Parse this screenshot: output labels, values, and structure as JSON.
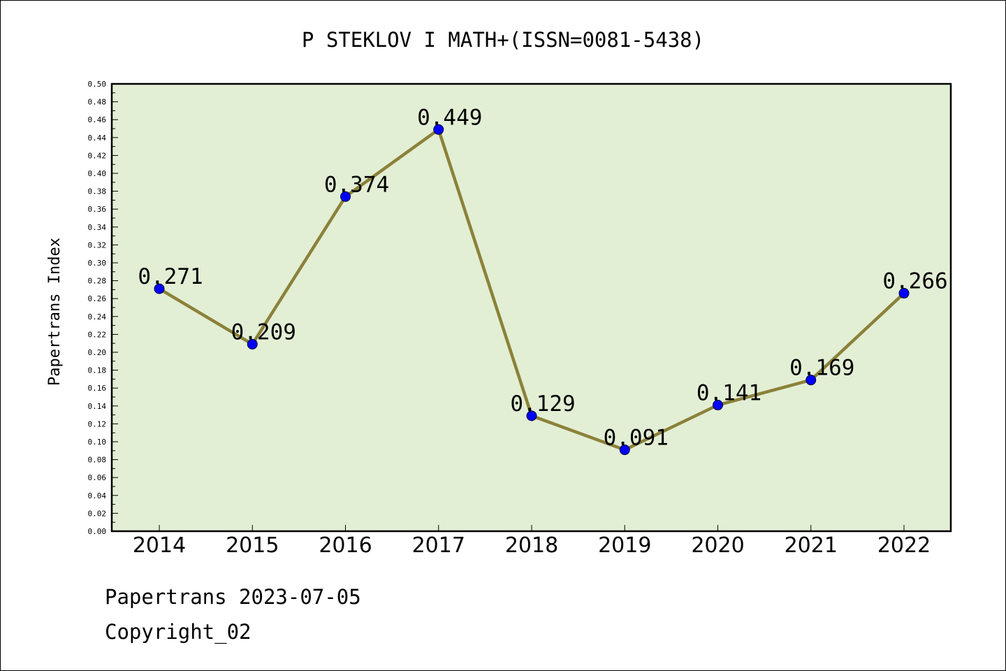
{
  "chart_data": {
    "type": "line",
    "title": "P STEKLOV I MATH+(ISSN=0081-5438)",
    "xlabel": "",
    "ylabel": "Papertrans Index",
    "categories": [
      "2014",
      "2015",
      "2016",
      "2017",
      "2018",
      "2019",
      "2020",
      "2021",
      "2022"
    ],
    "values": [
      0.271,
      0.209,
      0.374,
      0.449,
      0.129,
      0.091,
      0.141,
      0.169,
      0.266
    ],
    "data_labels": [
      "0.271",
      "0.209",
      "0.374",
      "0.449",
      "0.129",
      "0.091",
      "0.141",
      "0.169",
      "0.266"
    ],
    "ylim": [
      0,
      0.5
    ],
    "yticks": [
      "0.00",
      "0.02",
      "0.04",
      "0.06",
      "0.08",
      "0.10",
      "0.12",
      "0.14",
      "0.16",
      "0.18",
      "0.20",
      "0.22",
      "0.24",
      "0.26",
      "0.28",
      "0.30",
      "0.32",
      "0.34",
      "0.36",
      "0.38",
      "0.40",
      "0.42",
      "0.44",
      "0.46",
      "0.48",
      "0.50"
    ],
    "grid": false,
    "colors": {
      "plot_background": "#e2efd5",
      "line": "#8b8139",
      "marker": "#0000ff"
    }
  },
  "footer": {
    "date_line": "Papertrans 2023-07-05",
    "copyright": "Copyright_02"
  }
}
